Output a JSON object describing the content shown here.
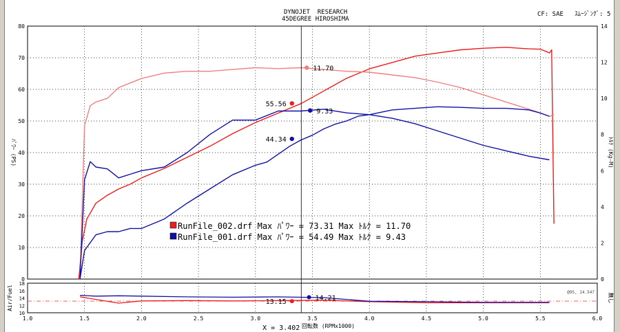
{
  "header": {
    "title_line1": "DYNOJET  RESEARCH",
    "title_line2": "45DEGREE HIROSHIMA",
    "top_right": "CF: SAE   ｽﾑｰｼﾞﾝｸﾞ: 5"
  },
  "chart_data": [
    {
      "type": "line",
      "xlabel": "回転数 (RPMx1000)",
      "ylabel_left": "ﾊﾟﾜｰ (PS)",
      "ylabel_right": "ﾄﾙｸ (Kg-M)",
      "xlim": [
        1.0,
        6.0
      ],
      "ylim_left": [
        0,
        80
      ],
      "ylim_right": [
        0,
        14
      ],
      "x_ticks": [
        "1.0",
        "1.5",
        "2.0",
        "2.5",
        "3.0",
        "3.5",
        "4.0",
        "4.5",
        "5.0",
        "5.5",
        "6.0"
      ],
      "y_ticks_left": [
        "0",
        "10",
        "20",
        "30",
        "40",
        "50",
        "60",
        "70",
        "80"
      ],
      "y_ticks_right": [
        "0",
        "2",
        "4",
        "6",
        "8",
        "10",
        "12",
        "14"
      ],
      "grid": true,
      "legend": [
        {
          "label": "RunFile_002.drf Max ﾊﾟﾜｰ = 73.31    Max ﾄﾙｸ = 11.70",
          "color": "#e82020"
        },
        {
          "label": "RunFile_001.drf Max ﾊﾟﾜｰ = 54.49    Max ﾄﾙｸ = 9.43",
          "color": "#1010a8"
        }
      ],
      "series": [
        {
          "name": "RunFile_002.drf ﾊﾟﾜｰ",
          "axis": "left",
          "color": "#ee1c1c",
          "x": [
            1.45,
            1.48,
            1.52,
            1.6,
            1.7,
            1.8,
            1.9,
            2.0,
            2.2,
            2.4,
            2.6,
            2.8,
            3.0,
            3.2,
            3.4,
            3.6,
            3.8,
            4.0,
            4.2,
            4.4,
            4.6,
            4.8,
            5.0,
            5.2,
            5.4,
            5.5,
            5.55,
            5.58,
            5.6,
            5.62
          ],
          "y": [
            0,
            12,
            19,
            24,
            26.5,
            28.5,
            30,
            32,
            35,
            38.5,
            42,
            46,
            49.5,
            52.5,
            55.5,
            59.5,
            63.5,
            66.5,
            68.5,
            70.5,
            71.5,
            72.5,
            73,
            73.3,
            72.8,
            72.7,
            72,
            71.5,
            72.5,
            17.5
          ]
        },
        {
          "name": "RunFile_002.drf ﾄﾙｸ",
          "axis": "right",
          "color": "#f08080",
          "x": [
            1.46,
            1.5,
            1.55,
            1.6,
            1.7,
            1.8,
            2.0,
            2.2,
            2.4,
            2.6,
            2.8,
            3.0,
            3.2,
            3.4,
            3.6,
            3.8,
            4.0,
            4.2,
            4.4,
            4.6,
            4.8,
            5.0,
            5.2,
            5.4,
            5.5,
            5.58,
            5.62
          ],
          "y": [
            0,
            8.5,
            9.6,
            9.8,
            10.0,
            10.6,
            11.1,
            11.4,
            11.5,
            11.5,
            11.6,
            11.7,
            11.65,
            11.7,
            11.6,
            11.5,
            11.45,
            11.3,
            11.15,
            10.9,
            10.6,
            10.2,
            9.8,
            9.4,
            9.2,
            9.0,
            9.1
          ]
        },
        {
          "name": "RunFile_001.drf ﾊﾟﾜｰ",
          "axis": "left",
          "color": "#1010a8",
          "x": [
            1.46,
            1.5,
            1.6,
            1.7,
            1.8,
            1.9,
            2.0,
            2.2,
            2.4,
            2.6,
            2.8,
            3.0,
            3.1,
            3.2,
            3.3,
            3.4,
            3.5,
            3.6,
            3.7,
            3.8,
            3.9,
            4.0,
            4.2,
            4.4,
            4.6,
            4.8,
            5.0,
            5.2,
            5.4,
            5.5,
            5.58
          ],
          "y": [
            0,
            9,
            14,
            15,
            15,
            16,
            16,
            19,
            24,
            28.5,
            33,
            36,
            37,
            39.5,
            42,
            44,
            45.5,
            47.5,
            49,
            50,
            51.5,
            52,
            53.5,
            54,
            54.5,
            54.3,
            54,
            54,
            53.5,
            52.5,
            51.5
          ]
        },
        {
          "name": "RunFile_001.drf ﾄﾙｸ",
          "axis": "right",
          "color": "#1010a8",
          "x": [
            1.46,
            1.5,
            1.55,
            1.6,
            1.7,
            1.8,
            1.9,
            2.0,
            2.2,
            2.4,
            2.6,
            2.8,
            3.0,
            3.2,
            3.4,
            3.6,
            3.8,
            4.0,
            4.2,
            4.4,
            4.6,
            4.8,
            5.0,
            5.2,
            5.4,
            5.58
          ],
          "y": [
            0,
            5.5,
            6.5,
            6.2,
            6.1,
            5.6,
            5.8,
            6.0,
            6.2,
            7.0,
            8.0,
            8.8,
            8.8,
            9.3,
            9.3,
            9.4,
            9.2,
            9.1,
            8.9,
            8.6,
            8.2,
            7.8,
            7.4,
            7.1,
            6.8,
            6.6
          ]
        }
      ],
      "annotations": [
        {
          "text": "11.70",
          "x": 3.45,
          "y": 11.7,
          "axis": "right",
          "color": "#f08080"
        },
        {
          "text": "55.56",
          "x": 3.32,
          "y": 55.56,
          "axis": "left",
          "color": "#ee1c1c"
        },
        {
          "text": "9.33",
          "x": 3.48,
          "y": 9.33,
          "axis": "right",
          "color": "#1010a8"
        },
        {
          "text": "44.34",
          "x": 3.32,
          "y": 44.34,
          "axis": "left",
          "color": "#1010a8"
        }
      ],
      "cursor": {
        "label": "X = 3.402",
        "x": 3.402
      }
    },
    {
      "type": "line",
      "ylabel_left": "Air/Fuel",
      "ylabel_right": "無し",
      "xlim": [
        1.0,
        6.0
      ],
      "ylim": [
        10,
        18
      ],
      "y_ticks_left": [
        "10",
        "12",
        "14",
        "16",
        "18"
      ],
      "reference_line": {
        "y": 13.15,
        "color": "#ff4040",
        "label": "@95, 14.547"
      },
      "series": [
        {
          "name": "RunFile_002.drf Air/Fuel",
          "color": "#ee1c1c",
          "x": [
            1.46,
            1.6,
            1.8,
            2.0,
            2.4,
            2.8,
            3.2,
            3.6,
            4.0,
            4.5,
            5.0,
            5.58
          ],
          "y": [
            14.3,
            13.6,
            12.6,
            13.2,
            13.3,
            13.2,
            13.3,
            13.4,
            13.0,
            12.7,
            12.7,
            12.7
          ]
        },
        {
          "name": "RunFile_001.drf Air/Fuel",
          "color": "#1010a8",
          "x": [
            1.46,
            1.6,
            1.8,
            2.0,
            2.4,
            2.8,
            3.2,
            3.6,
            4.0,
            4.5,
            5.0,
            5.58
          ],
          "y": [
            14.7,
            14.5,
            14.6,
            14.5,
            14.3,
            14.2,
            14.3,
            14.1,
            13.1,
            13.0,
            12.8,
            12.8
          ]
        }
      ],
      "annotations": [
        {
          "text": "13.15",
          "x": 3.32,
          "y": 13.15,
          "color": "#ee1c1c"
        },
        {
          "text": "14.21",
          "x": 3.47,
          "y": 14.21,
          "color": "#1010a8"
        }
      ]
    }
  ]
}
